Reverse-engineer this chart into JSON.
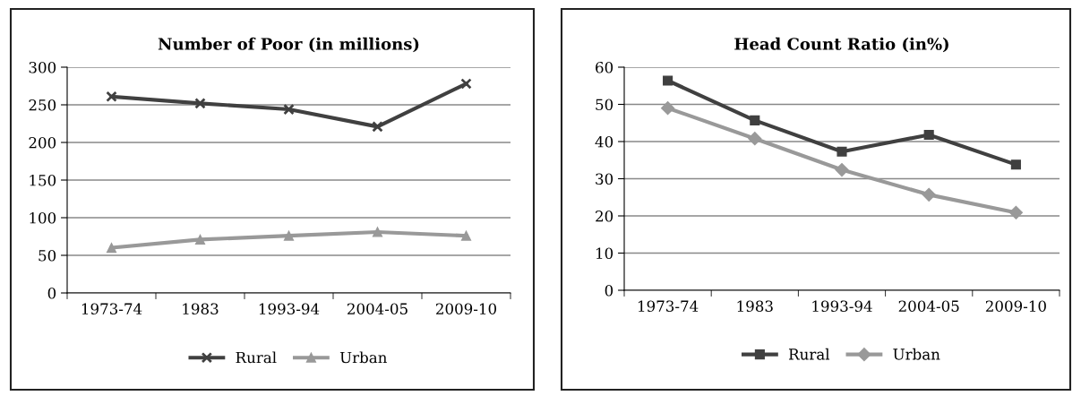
{
  "chart_data": [
    {
      "type": "line",
      "title": "Number of Poor (in millions)",
      "categories": [
        "1973-74",
        "1983",
        "1993-94",
        "2004-05",
        "2009-10"
      ],
      "series": [
        {
          "name": "Rural",
          "color": "#404040",
          "marker": "cross",
          "values": [
            261,
            252,
            244,
            221,
            278
          ]
        },
        {
          "name": "Urban",
          "color": "#999999",
          "marker": "triangle",
          "values": [
            60,
            71,
            76,
            81,
            76
          ]
        }
      ],
      "ylim": [
        0,
        300
      ],
      "yticks": [
        0,
        50,
        100,
        150,
        200,
        250,
        300
      ],
      "grid": "y",
      "legend": "bottom",
      "line_style": "solid"
    },
    {
      "type": "line",
      "title": "Head Count Ratio (in%)",
      "categories": [
        "1973-74",
        "1983",
        "1993-94",
        "2004-05",
        "2009-10"
      ],
      "series": [
        {
          "name": "Rural",
          "color": "#404040",
          "marker": "square",
          "values": [
            56.4,
            45.7,
            37.3,
            41.8,
            33.8
          ]
        },
        {
          "name": "Urban",
          "color": "#999999",
          "marker": "diamond",
          "values": [
            49,
            40.8,
            32.4,
            25.7,
            20.9
          ]
        }
      ],
      "ylim": [
        0,
        60
      ],
      "yticks": [
        0,
        10,
        20,
        30,
        40,
        50,
        60
      ],
      "grid": "y",
      "legend": "bottom",
      "line_style": "solid"
    }
  ]
}
